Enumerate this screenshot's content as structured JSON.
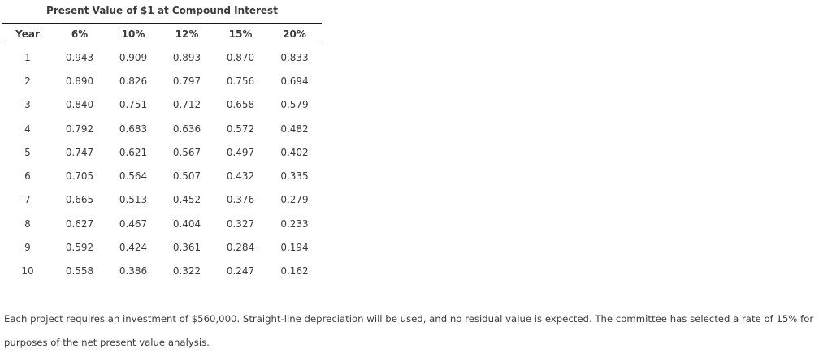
{
  "title": "Present Value of $1 at Compound Interest",
  "table": {
    "columns": [
      "Year",
      "6%",
      "10%",
      "12%",
      "15%",
      "20%"
    ],
    "rows": [
      [
        "1",
        "0.943",
        "0.909",
        "0.893",
        "0.870",
        "0.833"
      ],
      [
        "2",
        "0.890",
        "0.826",
        "0.797",
        "0.756",
        "0.694"
      ],
      [
        "3",
        "0.840",
        "0.751",
        "0.712",
        "0.658",
        "0.579"
      ],
      [
        "4",
        "0.792",
        "0.683",
        "0.636",
        "0.572",
        "0.482"
      ],
      [
        "5",
        "0.747",
        "0.621",
        "0.567",
        "0.497",
        "0.402"
      ],
      [
        "6",
        "0.705",
        "0.564",
        "0.507",
        "0.432",
        "0.335"
      ],
      [
        "7",
        "0.665",
        "0.513",
        "0.452",
        "0.376",
        "0.279"
      ],
      [
        "8",
        "0.627",
        "0.467",
        "0.404",
        "0.327",
        "0.233"
      ],
      [
        "9",
        "0.592",
        "0.424",
        "0.361",
        "0.284",
        "0.194"
      ],
      [
        "10",
        "0.558",
        "0.386",
        "0.322",
        "0.247",
        "0.162"
      ]
    ]
  },
  "paragraph": "Each project requires an investment of $560,000. Straight-line depreciation will be used, and no residual value is expected. The committee has selected a rate of 15% for purposes of the net present value analysis.",
  "colors": {
    "text": "#3b3b3b",
    "rule": "#1a1a1a",
    "background": "#ffffff"
  }
}
